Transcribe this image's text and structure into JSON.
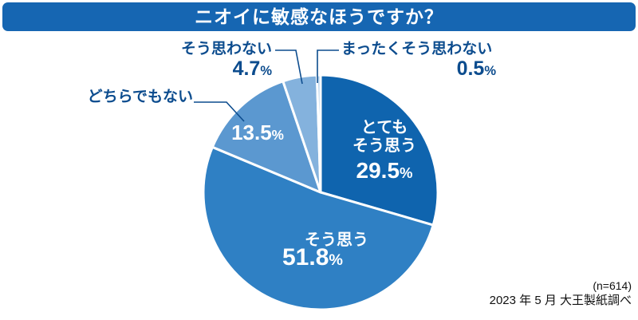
{
  "header": {
    "title": "ニオイに敏感なほうですか？",
    "bg_color": "#1666b2"
  },
  "chart_data": {
    "type": "pie",
    "title": "ニオイに敏感なほうですか？",
    "direction": "clockwise",
    "start_angle_deg": -90,
    "total": 100,
    "percent_suffix": "%",
    "outside_label_color": "#0c4c8e",
    "inside_label_color": "#ffffff",
    "slice_border_color": "#ffffff",
    "slices": [
      {
        "label": "とてもそう思う",
        "label_lines": "とても\nそう思う",
        "value": 29.5,
        "color": "#0f64ae",
        "label_placement": "inside"
      },
      {
        "label": "そう思う",
        "value": 51.8,
        "color": "#2f80c4",
        "label_placement": "inside"
      },
      {
        "label": "どちらでもない",
        "value": 13.5,
        "color": "#5b98d0",
        "label_placement": "callout-left"
      },
      {
        "label": "そう思わない",
        "value": 4.7,
        "color": "#84b2dd",
        "label_placement": "callout-top"
      },
      {
        "label": "まったくそう思わない",
        "value": 0.5,
        "color": "#a9cbe9",
        "label_placement": "callout-top-right"
      }
    ]
  },
  "footer": {
    "sample_size": "(n=614)",
    "source": "2023 年 5 月 大王製紙調べ"
  }
}
